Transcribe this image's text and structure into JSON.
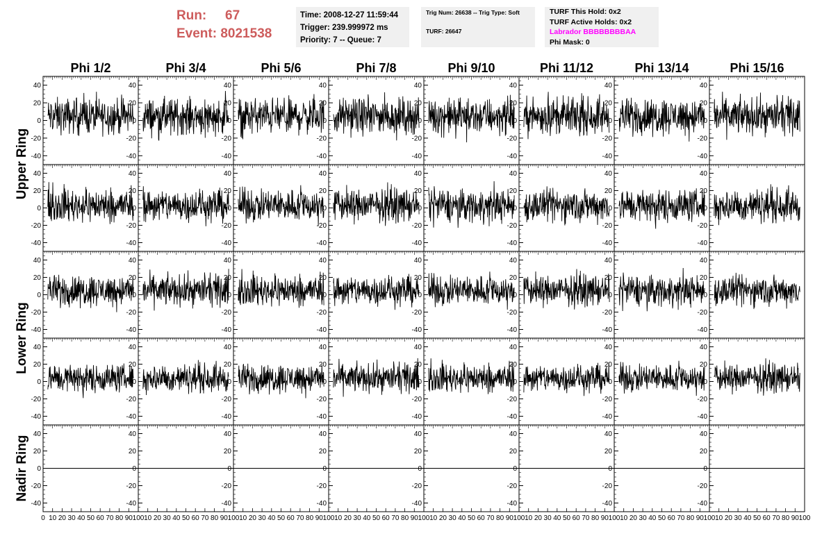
{
  "header": {
    "run_label": "Run:",
    "run_value": "67",
    "event_label": "Event:",
    "event_value": "8021538",
    "time": "Time: 2008-12-27 11:59:44",
    "trigger": "Trigger: 239.999972 ms",
    "priority": "Priority: 7 -- Queue: 7",
    "trig_num": "Trig Num: 26638 -- Trig Type: Soft",
    "turf": "TURF: 26647",
    "turf_this_hold": "TURF This Hold: 0x2",
    "turf_active_holds": "TURF Active Holds: 0x2",
    "labrador": "Labrador BBBBBBBBAA",
    "phi_mask": "Phi Mask: 0"
  },
  "colors": {
    "run_text": "#cd5c5c",
    "labrador_text": "#ff00ff",
    "box_bg": "#f0f0f0",
    "trace": "#000000"
  },
  "chart_data": {
    "type": "line",
    "columns": [
      "Phi 1/2",
      "Phi 3/4",
      "Phi 5/6",
      "Phi 7/8",
      "Phi 9/10",
      "Phi 11/12",
      "Phi 13/14",
      "Phi 15/16"
    ],
    "rows": [
      "Upper Ring",
      "Upper Ring",
      "Lower Ring",
      "Lower Ring",
      "Nadir Ring"
    ],
    "row_labels": [
      "Upper Ring",
      "Lower Ring",
      "Nadir Ring"
    ],
    "xlim": [
      0,
      100
    ],
    "ylim": [
      -50,
      50
    ],
    "x_ticks": [
      "0",
      "10",
      "20",
      "30",
      "40",
      "50",
      "60",
      "70",
      "80",
      "90",
      "100"
    ],
    "y_ticks": [
      "-40",
      "-20",
      "0",
      "20",
      "40"
    ],
    "samples_per_trace": 260,
    "trace_amplitude_by_row": [
      15,
      14,
      13,
      12,
      0
    ],
    "trace_mean_by_row": [
      5,
      3,
      5,
      4,
      0
    ],
    "nadir_row_flat": true
  }
}
